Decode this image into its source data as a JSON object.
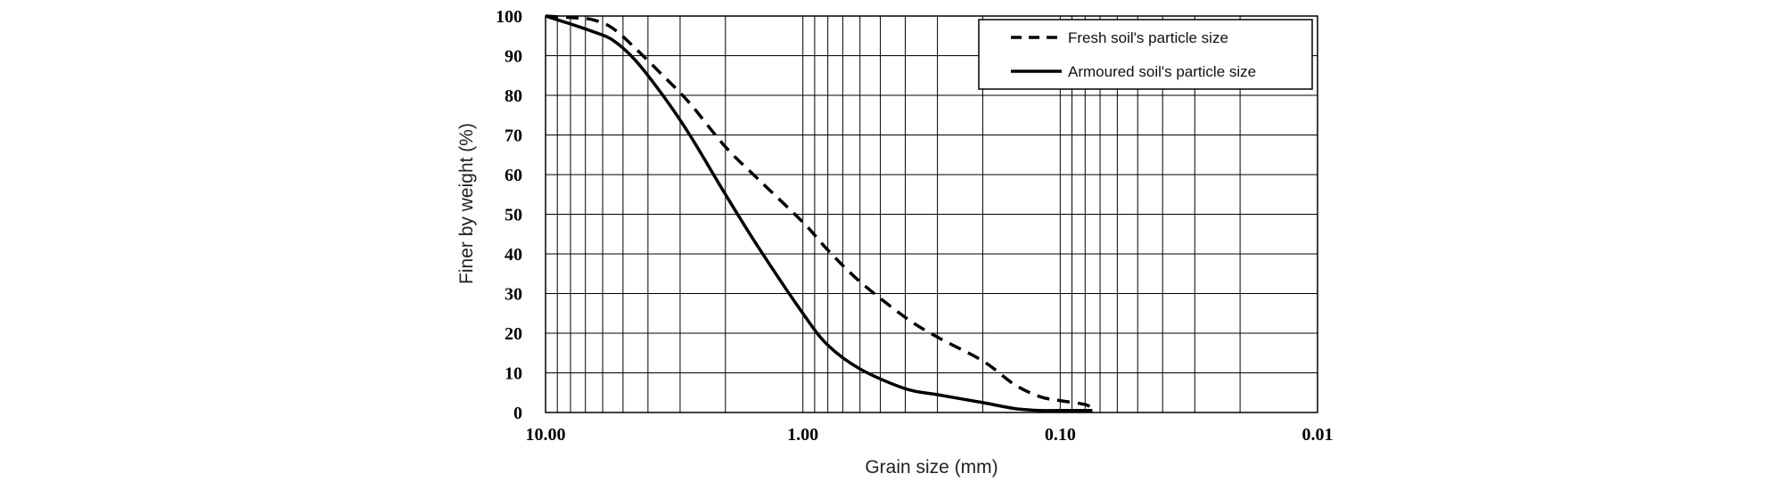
{
  "chart_data": {
    "type": "line",
    "xlabel": "Grain size (mm)",
    "ylabel": "Finer by weight (%)",
    "x_scale": "log-reversed",
    "xlim": [
      10.0,
      0.01
    ],
    "ylim": [
      0,
      100
    ],
    "x_ticks": [
      "10.00",
      "1.00",
      "0.10",
      "0.01"
    ],
    "y_ticks": [
      "0",
      "10",
      "20",
      "30",
      "40",
      "50",
      "60",
      "70",
      "80",
      "90",
      "100"
    ],
    "grid": true,
    "legend_position": "top-right",
    "series": [
      {
        "name": "Fresh soil's particle size",
        "style": "dashed",
        "color": "#000000",
        "x": [
          10.0,
          7.5,
          6.5,
          5.5,
          4.5,
          3.5,
          2.75,
          2.0,
          1.5,
          1.0,
          0.8,
          0.6,
          0.4,
          0.3,
          0.2,
          0.15,
          0.12,
          0.1,
          0.08,
          0.075
        ],
        "y": [
          100,
          99.5,
          99,
          97,
          92,
          85,
          78,
          67,
          59,
          48,
          41,
          33,
          24,
          19,
          13,
          7,
          4,
          3,
          2,
          1
        ]
      },
      {
        "name": "Armoured soil's particle size",
        "style": "solid",
        "color": "#000000",
        "x": [
          10.0,
          8.0,
          6.5,
          5.5,
          4.5,
          3.5,
          2.75,
          2.0,
          1.5,
          1.0,
          0.8,
          0.6,
          0.4,
          0.3,
          0.2,
          0.15,
          0.12,
          0.1,
          0.08,
          0.075
        ],
        "y": [
          100,
          98,
          96,
          94,
          89,
          80,
          70,
          55,
          42,
          25,
          17,
          11,
          6,
          4.5,
          2.5,
          1,
          0.5,
          0.5,
          0.5,
          0.5
        ]
      }
    ]
  }
}
